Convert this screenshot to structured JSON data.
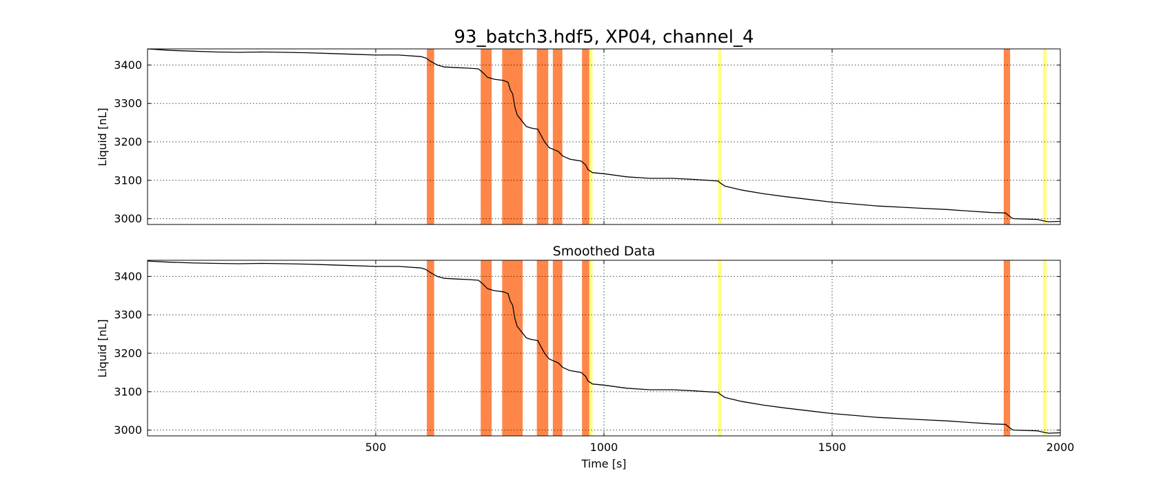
{
  "chart_data": [
    {
      "type": "line",
      "title": "93_batch3.hdf5, XP04, channel_4",
      "xlabel": "",
      "ylabel": "Liquid [nL]",
      "xlim": [
        0,
        2000
      ],
      "ylim": [
        2985,
        3442
      ],
      "x_ticks": [
        500,
        1000,
        1500,
        2000
      ],
      "x_tick_labels_shown": false,
      "y_ticks": [
        3000,
        3100,
        3200,
        3300,
        3400
      ],
      "y_tick_labels": [
        "3000",
        "3100",
        "3200",
        "3300",
        "3400"
      ],
      "grid": true,
      "series": [
        {
          "color": "#000000",
          "x": [
            0,
            50,
            100,
            150,
            200,
            250,
            300,
            350,
            400,
            450,
            500,
            550,
            600,
            610,
            620,
            635,
            650,
            680,
            700,
            725,
            735,
            745,
            760,
            780,
            790,
            795,
            800,
            805,
            810,
            820,
            830,
            840,
            845,
            855,
            860,
            870,
            880,
            890,
            900,
            910,
            925,
            940,
            950,
            960,
            965,
            975,
            1000,
            1050,
            1100,
            1150,
            1200,
            1250,
            1255,
            1265,
            1300,
            1350,
            1400,
            1450,
            1500,
            1550,
            1600,
            1650,
            1700,
            1750,
            1800,
            1850,
            1880,
            1885,
            1895,
            1900,
            1950,
            1965,
            1975,
            2000
          ],
          "y": [
            3442,
            3438,
            3436,
            3434,
            3433,
            3434,
            3433,
            3432,
            3430,
            3428,
            3426,
            3426,
            3422,
            3418,
            3410,
            3400,
            3395,
            3393,
            3392,
            3390,
            3380,
            3368,
            3363,
            3360,
            3355,
            3335,
            3325,
            3290,
            3270,
            3255,
            3240,
            3236,
            3235,
            3233,
            3222,
            3200,
            3185,
            3180,
            3175,
            3163,
            3155,
            3152,
            3150,
            3140,
            3128,
            3120,
            3117,
            3109,
            3105,
            3105,
            3102,
            3098,
            3093,
            3085,
            3075,
            3065,
            3057,
            3050,
            3043,
            3038,
            3033,
            3030,
            3027,
            3024,
            3020,
            3016,
            3015,
            3010,
            3001,
            3000,
            2998,
            2994,
            2992,
            2993
          ]
        }
      ],
      "spans": [
        {
          "start": 612,
          "end": 628,
          "color": "#ff7f3f"
        },
        {
          "start": 730,
          "end": 754,
          "color": "#ff7f3f"
        },
        {
          "start": 777,
          "end": 822,
          "color": "#ff7f3f"
        },
        {
          "start": 853,
          "end": 878,
          "color": "#ff7f3f"
        },
        {
          "start": 888,
          "end": 909,
          "color": "#ff7f3f"
        },
        {
          "start": 952,
          "end": 968,
          "color": "#ff7f3f"
        },
        {
          "start": 968,
          "end": 975,
          "color": "#ffff66"
        },
        {
          "start": 1250,
          "end": 1257,
          "color": "#ffff66"
        },
        {
          "start": 1876,
          "end": 1890,
          "color": "#ff7f3f"
        },
        {
          "start": 1962,
          "end": 1970,
          "color": "#ffff66"
        }
      ]
    },
    {
      "type": "line",
      "title": "Smoothed Data",
      "xlabel": "Time [s]",
      "ylabel": "Liquid [nL]",
      "xlim": [
        0,
        2000
      ],
      "ylim": [
        2985,
        3442
      ],
      "x_ticks": [
        500,
        1000,
        1500,
        2000
      ],
      "x_tick_labels": [
        "500",
        "1000",
        "1500",
        "2000"
      ],
      "y_ticks": [
        3000,
        3100,
        3200,
        3300,
        3400
      ],
      "y_tick_labels": [
        "3000",
        "3100",
        "3200",
        "3300",
        "3400"
      ],
      "grid": true,
      "series": [
        {
          "color": "#000000",
          "x": [
            0,
            50,
            100,
            150,
            200,
            250,
            300,
            350,
            400,
            450,
            500,
            550,
            600,
            610,
            620,
            635,
            650,
            680,
            700,
            725,
            735,
            745,
            760,
            780,
            790,
            795,
            800,
            805,
            810,
            820,
            830,
            840,
            845,
            855,
            860,
            870,
            880,
            890,
            900,
            910,
            925,
            940,
            950,
            960,
            965,
            975,
            1000,
            1050,
            1100,
            1150,
            1200,
            1250,
            1255,
            1265,
            1300,
            1350,
            1400,
            1450,
            1500,
            1550,
            1600,
            1650,
            1700,
            1750,
            1800,
            1850,
            1880,
            1885,
            1895,
            1900,
            1950,
            1965,
            1975,
            2000
          ],
          "y": [
            3440,
            3437,
            3435,
            3434,
            3433,
            3434,
            3433,
            3432,
            3430,
            3428,
            3426,
            3426,
            3422,
            3418,
            3410,
            3400,
            3395,
            3393,
            3392,
            3390,
            3380,
            3368,
            3363,
            3360,
            3355,
            3335,
            3325,
            3290,
            3270,
            3255,
            3240,
            3236,
            3235,
            3233,
            3222,
            3200,
            3185,
            3180,
            3175,
            3163,
            3155,
            3152,
            3150,
            3140,
            3128,
            3120,
            3117,
            3109,
            3105,
            3105,
            3102,
            3098,
            3093,
            3085,
            3075,
            3065,
            3057,
            3050,
            3043,
            3038,
            3033,
            3030,
            3027,
            3024,
            3020,
            3016,
            3015,
            3010,
            3001,
            3000,
            2998,
            2994,
            2992,
            2993
          ]
        }
      ],
      "spans": [
        {
          "start": 612,
          "end": 628,
          "color": "#ff7f3f"
        },
        {
          "start": 730,
          "end": 754,
          "color": "#ff7f3f"
        },
        {
          "start": 777,
          "end": 822,
          "color": "#ff7f3f"
        },
        {
          "start": 853,
          "end": 878,
          "color": "#ff7f3f"
        },
        {
          "start": 888,
          "end": 909,
          "color": "#ff7f3f"
        },
        {
          "start": 952,
          "end": 968,
          "color": "#ff7f3f"
        },
        {
          "start": 968,
          "end": 975,
          "color": "#ffff66"
        },
        {
          "start": 1250,
          "end": 1257,
          "color": "#ffff66"
        },
        {
          "start": 1876,
          "end": 1890,
          "color": "#ff7f3f"
        },
        {
          "start": 1962,
          "end": 1970,
          "color": "#ffff66"
        }
      ]
    }
  ]
}
